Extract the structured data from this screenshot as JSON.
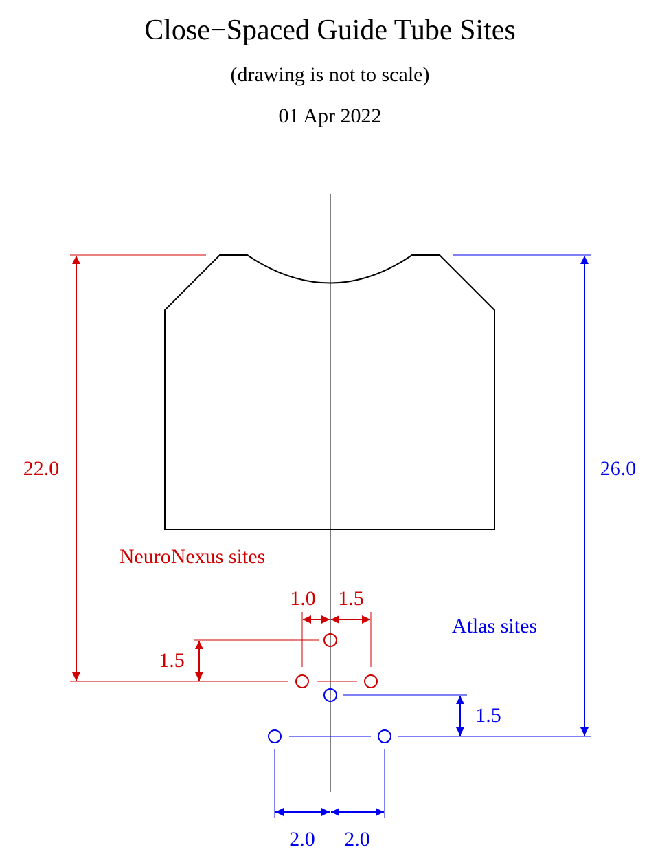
{
  "title": "Close−Spaced Guide Tube Sites",
  "subtitle": "(drawing is not to scale)",
  "date": "01 Apr 2022",
  "colors": {
    "neuronexus": "#d00000",
    "atlas": "#0000ee",
    "outline": "#000000"
  },
  "neuronexus": {
    "label": "NeuroNexus sites",
    "total_height": "22.0",
    "left_offset": "1.0",
    "right_offset": "1.5",
    "row_spacing": "1.5"
  },
  "atlas": {
    "label": "Atlas sites",
    "total_height": "26.0",
    "row_spacing": "1.5",
    "left_offset": "2.0",
    "right_offset": "2.0"
  }
}
